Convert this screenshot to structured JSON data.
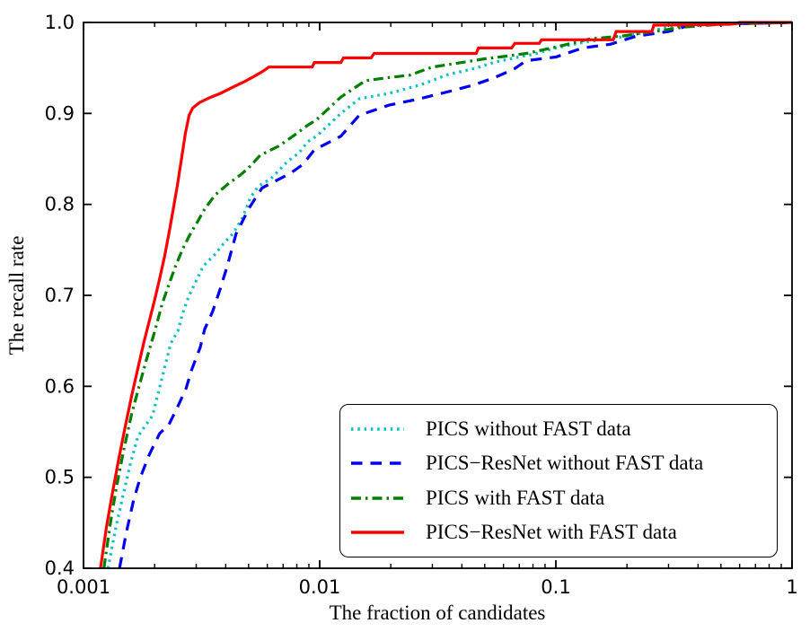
{
  "figure": {
    "background": "#ffffff",
    "axis_color": "#000000"
  },
  "chart_data": {
    "type": "line",
    "title": "",
    "xlabel": "The fraction of candidates",
    "ylabel": "The recall rate",
    "xscale": "log",
    "xlim": [
      0.001,
      1
    ],
    "ylim": [
      0.4,
      1.0
    ],
    "grid": false,
    "legend_location": "lower right",
    "x_ticks": [
      {
        "value": 0.001,
        "label": "0.001"
      },
      {
        "value": 0.01,
        "label": "0.01"
      },
      {
        "value": 0.1,
        "label": "0.1"
      },
      {
        "value": 1,
        "label": "1"
      }
    ],
    "y_ticks": [
      {
        "value": 0.4,
        "label": "0.4"
      },
      {
        "value": 0.5,
        "label": "0.5"
      },
      {
        "value": 0.6,
        "label": "0.6"
      },
      {
        "value": 0.7,
        "label": "0.7"
      },
      {
        "value": 0.8,
        "label": "0.8"
      },
      {
        "value": 0.9,
        "label": "0.9"
      },
      {
        "value": 1.0,
        "label": "1.0"
      }
    ],
    "series": [
      {
        "name": "PICS without FAST data",
        "color": "#00bfbf",
        "linestyle": "dotted",
        "points": [
          [
            0.00127,
            0.4
          ],
          [
            0.00137,
            0.445
          ],
          [
            0.00147,
            0.48
          ],
          [
            0.00158,
            0.515
          ],
          [
            0.0017,
            0.545
          ],
          [
            0.00183,
            0.557
          ],
          [
            0.00196,
            0.568
          ],
          [
            0.00214,
            0.607
          ],
          [
            0.00234,
            0.647
          ],
          [
            0.00251,
            0.661
          ],
          [
            0.00262,
            0.679
          ],
          [
            0.00279,
            0.699
          ],
          [
            0.00304,
            0.719
          ],
          [
            0.00321,
            0.732
          ],
          [
            0.0036,
            0.745
          ],
          [
            0.00395,
            0.758
          ],
          [
            0.0043,
            0.768
          ],
          [
            0.0047,
            0.785
          ],
          [
            0.0051,
            0.808
          ],
          [
            0.0055,
            0.82
          ],
          [
            0.0062,
            0.828
          ],
          [
            0.0067,
            0.837
          ],
          [
            0.0073,
            0.847
          ],
          [
            0.0082,
            0.857
          ],
          [
            0.0089,
            0.869
          ],
          [
            0.0097,
            0.875
          ],
          [
            0.0123,
            0.9
          ],
          [
            0.0147,
            0.916
          ],
          [
            0.0196,
            0.922
          ],
          [
            0.0264,
            0.931
          ],
          [
            0.0352,
            0.943
          ],
          [
            0.0446,
            0.949
          ],
          [
            0.0546,
            0.956
          ],
          [
            0.0667,
            0.961
          ],
          [
            0.08,
            0.965
          ],
          [
            0.1,
            0.972
          ],
          [
            0.13,
            0.978
          ],
          [
            0.2,
            0.985
          ],
          [
            0.3,
            0.995
          ],
          [
            0.45,
            0.998
          ],
          [
            1.0,
            1.0
          ]
        ]
      },
      {
        "name": "PICS−ResNet without FAST data",
        "color": "#0000ee",
        "linestyle": "dashed",
        "points": [
          [
            0.00142,
            0.4
          ],
          [
            0.00152,
            0.44
          ],
          [
            0.00163,
            0.475
          ],
          [
            0.00174,
            0.5
          ],
          [
            0.0019,
            0.525
          ],
          [
            0.0021,
            0.548
          ],
          [
            0.0023,
            0.558
          ],
          [
            0.00251,
            0.578
          ],
          [
            0.00272,
            0.598
          ],
          [
            0.00286,
            0.617
          ],
          [
            0.00312,
            0.643
          ],
          [
            0.00326,
            0.663
          ],
          [
            0.00352,
            0.682
          ],
          [
            0.00378,
            0.706
          ],
          [
            0.00406,
            0.732
          ],
          [
            0.00443,
            0.768
          ],
          [
            0.0047,
            0.781
          ],
          [
            0.005,
            0.795
          ],
          [
            0.0057,
            0.818
          ],
          [
            0.0075,
            0.834
          ],
          [
            0.0085,
            0.844
          ],
          [
            0.0095,
            0.86
          ],
          [
            0.0123,
            0.875
          ],
          [
            0.0147,
            0.898
          ],
          [
            0.0196,
            0.909
          ],
          [
            0.0264,
            0.916
          ],
          [
            0.0352,
            0.924
          ],
          [
            0.0446,
            0.931
          ],
          [
            0.0546,
            0.939
          ],
          [
            0.0667,
            0.949
          ],
          [
            0.075,
            0.958
          ],
          [
            0.1,
            0.962
          ],
          [
            0.13,
            0.972
          ],
          [
            0.17,
            0.976
          ],
          [
            0.22,
            0.985
          ],
          [
            0.3,
            0.99
          ],
          [
            0.37,
            0.997
          ],
          [
            0.5,
            0.998
          ],
          [
            1.0,
            1.0
          ]
        ]
      },
      {
        "name": "PICS with FAST data",
        "color": "#007f00",
        "linestyle": "dashdot",
        "points": [
          [
            0.00122,
            0.4
          ],
          [
            0.0013,
            0.45
          ],
          [
            0.00138,
            0.49
          ],
          [
            0.00148,
            0.53
          ],
          [
            0.0016,
            0.57
          ],
          [
            0.00172,
            0.6
          ],
          [
            0.00185,
            0.63
          ],
          [
            0.002,
            0.66
          ],
          [
            0.00215,
            0.69
          ],
          [
            0.0023,
            0.712
          ],
          [
            0.00245,
            0.732
          ],
          [
            0.00262,
            0.75
          ],
          [
            0.0028,
            0.765
          ],
          [
            0.0029,
            0.772
          ],
          [
            0.00304,
            0.781
          ],
          [
            0.00326,
            0.795
          ],
          [
            0.0036,
            0.81
          ],
          [
            0.00407,
            0.822
          ],
          [
            0.0046,
            0.832
          ],
          [
            0.005,
            0.84
          ],
          [
            0.0056,
            0.854
          ],
          [
            0.0067,
            0.864
          ],
          [
            0.0078,
            0.876
          ],
          [
            0.0089,
            0.887
          ],
          [
            0.0097,
            0.893
          ],
          [
            0.0123,
            0.918
          ],
          [
            0.0156,
            0.936
          ],
          [
            0.019,
            0.939
          ],
          [
            0.024,
            0.942
          ],
          [
            0.03,
            0.951
          ],
          [
            0.04,
            0.956
          ],
          [
            0.05,
            0.96
          ],
          [
            0.062,
            0.963
          ],
          [
            0.075,
            0.966
          ],
          [
            0.1,
            0.973
          ],
          [
            0.14,
            0.982
          ],
          [
            0.19,
            0.985
          ],
          [
            0.26,
            0.99
          ],
          [
            0.35,
            0.995
          ],
          [
            0.5,
            0.998
          ],
          [
            1.0,
            1.0
          ]
        ]
      },
      {
        "name": "PICS−ResNet with FAST data",
        "color": "#ff0000",
        "linestyle": "solid",
        "points": [
          [
            0.00118,
            0.4
          ],
          [
            0.00125,
            0.445
          ],
          [
            0.00132,
            0.48
          ],
          [
            0.00141,
            0.52
          ],
          [
            0.0015,
            0.555
          ],
          [
            0.0016,
            0.59
          ],
          [
            0.0017,
            0.62
          ],
          [
            0.0018,
            0.648
          ],
          [
            0.0019,
            0.672
          ],
          [
            0.002,
            0.695
          ],
          [
            0.0021,
            0.718
          ],
          [
            0.0022,
            0.742
          ],
          [
            0.0023,
            0.768
          ],
          [
            0.0024,
            0.795
          ],
          [
            0.0025,
            0.822
          ],
          [
            0.0026,
            0.85
          ],
          [
            0.0027,
            0.878
          ],
          [
            0.0028,
            0.898
          ],
          [
            0.0029,
            0.906
          ],
          [
            0.0031,
            0.912
          ],
          [
            0.0034,
            0.917
          ],
          [
            0.0038,
            0.922
          ],
          [
            0.0043,
            0.929
          ],
          [
            0.0048,
            0.935
          ],
          [
            0.0053,
            0.941
          ],
          [
            0.0058,
            0.947
          ],
          [
            0.0061,
            0.951
          ],
          [
            0.0093,
            0.951
          ],
          [
            0.0095,
            0.956
          ],
          [
            0.0123,
            0.956
          ],
          [
            0.0126,
            0.961
          ],
          [
            0.0165,
            0.961
          ],
          [
            0.017,
            0.966
          ],
          [
            0.046,
            0.966
          ],
          [
            0.047,
            0.972
          ],
          [
            0.065,
            0.972
          ],
          [
            0.067,
            0.977
          ],
          [
            0.085,
            0.977
          ],
          [
            0.087,
            0.981
          ],
          [
            0.175,
            0.981
          ],
          [
            0.18,
            0.99
          ],
          [
            0.255,
            0.99
          ],
          [
            0.26,
            0.997
          ],
          [
            0.55,
            0.998
          ],
          [
            0.6,
            1.0
          ],
          [
            1.0,
            1.0
          ]
        ]
      }
    ]
  }
}
